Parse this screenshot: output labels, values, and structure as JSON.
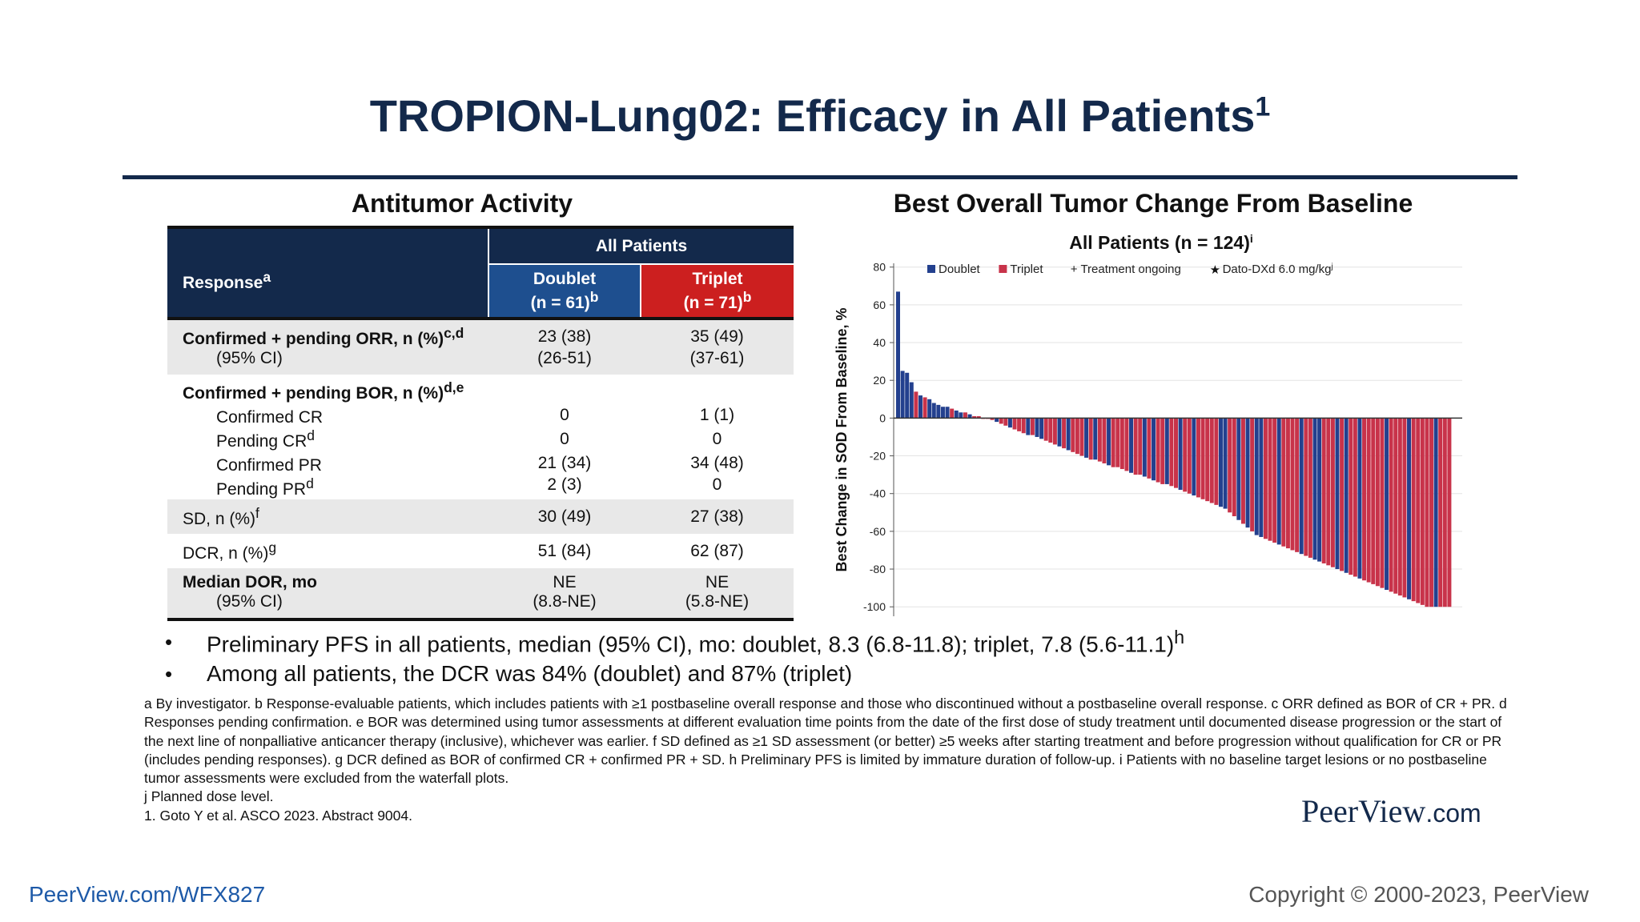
{
  "slide": {
    "title": "TROPION-Lung02: Efficacy in All Patients",
    "title_sup": "1"
  },
  "table": {
    "section_title": "Antitumor Activity",
    "header": {
      "response": "Response",
      "response_sup": "a",
      "all_patients": "All Patients",
      "doublet": "Doublet",
      "doublet_n": "(n = 61)",
      "doublet_n_sup": "b",
      "triplet": "Triplet",
      "triplet_n": "(n = 71)",
      "triplet_n_sup": "b"
    },
    "orr": {
      "label": "Confirmed + pending ORR, n (%)",
      "sup": "c,d",
      "doublet": "23 (38)",
      "triplet": "35 (49)",
      "ci_label": "(95% CI)",
      "ci_doublet": "(26-51)",
      "ci_triplet": "(37-61)"
    },
    "bor": {
      "label": "Confirmed + pending BOR, n (%)",
      "sup": "d,e",
      "rows": [
        {
          "label": "Confirmed CR",
          "sup": "",
          "doublet": "0",
          "triplet": "1 (1)"
        },
        {
          "label": "Pending CR",
          "sup": "d",
          "doublet": "0",
          "triplet": "0"
        },
        {
          "label": "Confirmed PR",
          "sup": "",
          "doublet": "21 (34)",
          "triplet": "34 (48)"
        },
        {
          "label": "Pending PR",
          "sup": "d",
          "doublet": "2 (3)",
          "triplet": "0"
        }
      ]
    },
    "sd": {
      "label": "SD, n (%)",
      "sup": "f",
      "doublet": "30 (49)",
      "triplet": "27 (38)"
    },
    "dcr": {
      "label": "DCR, n (%)",
      "sup": "g",
      "doublet": "51 (84)",
      "triplet": "62 (87)"
    },
    "dor": {
      "label": "Median DOR, mo",
      "doublet": "NE",
      "triplet": "NE",
      "ci_label": "(95% CI)",
      "ci_doublet": "(8.8-NE)",
      "ci_triplet": "(5.8-NE)"
    }
  },
  "chart_data": {
    "type": "bar",
    "title": "Best Overall Tumor Change From Baseline",
    "subtitle": "All Patients (n = 124)",
    "subtitle_sup": "i",
    "ylabel": "Best Change in SOD From Baseline, %",
    "ylim": [
      -105,
      82
    ],
    "yticks": [
      80,
      60,
      40,
      20,
      0,
      -20,
      -40,
      -60,
      -80,
      -100
    ],
    "grid": true,
    "legend_position": "top",
    "legend": [
      {
        "label": "Doublet",
        "marker": "square",
        "color": "#23408e"
      },
      {
        "label": "Triplet",
        "marker": "square",
        "color": "#c8334a"
      },
      {
        "label": "+ Treatment ongoing",
        "marker": "none"
      },
      {
        "label": "Dato-DXd 6.0 mg/kg",
        "sup": "j",
        "marker": "star"
      }
    ],
    "series_colors": {
      "D": "#23408e",
      "T": "#c8334a"
    },
    "bars_arm": "DDDDTDTDDDDDTDDTDTTTTTDTTDTTTDTDDTTTDTDTTTDTDTTDTTTTDTTDTDTTDTTDTTDTTTTTDDTTDTDTDDTTTDTTTTDTTDDTTTDTDTTDTTTTTDTTTTDTTTTTDTTT",
    "values": [
      67,
      25,
      24,
      19,
      14,
      12,
      11,
      10,
      8,
      7,
      6,
      6,
      5,
      4,
      3,
      3,
      2,
      1,
      1,
      0,
      0,
      -1,
      -2,
      -3,
      -4,
      -5,
      -6,
      -7,
      -8,
      -9,
      -9,
      -10,
      -11,
      -12,
      -13,
      -14,
      -15,
      -16,
      -17,
      -18,
      -19,
      -20,
      -21,
      -22,
      -22,
      -23,
      -24,
      -25,
      -26,
      -26,
      -27,
      -28,
      -29,
      -30,
      -30,
      -31,
      -32,
      -33,
      -34,
      -35,
      -35,
      -36,
      -37,
      -38,
      -39,
      -40,
      -41,
      -42,
      -43,
      -44,
      -45,
      -46,
      -47,
      -48,
      -50,
      -52,
      -54,
      -56,
      -58,
      -60,
      -62,
      -63,
      -64,
      -65,
      -66,
      -67,
      -68,
      -69,
      -70,
      -71,
      -72,
      -73,
      -74,
      -75,
      -76,
      -77,
      -78,
      -79,
      -80,
      -81,
      -82,
      -83,
      -84,
      -85,
      -86,
      -87,
      -88,
      -89,
      -90,
      -91,
      -92,
      -93,
      -94,
      -95,
      -96,
      -97,
      -98,
      -99,
      -100,
      -100,
      -100,
      -100,
      -100,
      -100
    ]
  },
  "bullets": [
    {
      "text": "Preliminary PFS in all patients, median (95% CI), mo: doublet, 8.3 (6.8-11.8); triplet, 7.8 (5.6-11.1)",
      "sup": "h"
    },
    {
      "text": "Among all patients, the DCR was 84% (doublet) and 87% (triplet)",
      "sup": ""
    }
  ],
  "footnotes": {
    "line1": "a By investigator. b Response-evaluable patients, which includes patients with ≥1 postbaseline overall response and those who discontinued without a postbaseline overall response. c ORR defined as BOR of CR + PR. d Responses pending confirmation. e BOR was determined using tumor assessments at different evaluation time points from the date of the first dose of study treatment until documented disease progression or the start of the next line of nonpalliative anticancer therapy (inclusive), whichever was earlier. f SD defined as ≥1 SD assessment (or better) ≥5 weeks after starting treatment and before progression without qualification for CR or PR (includes pending responses). g DCR defined as BOR of confirmed CR + confirmed PR + SD. h Preliminary PFS is limited by immature duration of follow-up. i Patients with no baseline target lesions or no postbaseline tumor assessments were excluded from the waterfall plots.",
    "line2": "j Planned dose level.",
    "line3": "1. Goto Y et al. ASCO 2023. Abstract 9004."
  },
  "branding": {
    "logo_main": "PeerView",
    "logo_suffix": ".com",
    "link": "PeerView.com/WFX827",
    "copyright": "Copyright © 2000-2023, PeerView"
  }
}
